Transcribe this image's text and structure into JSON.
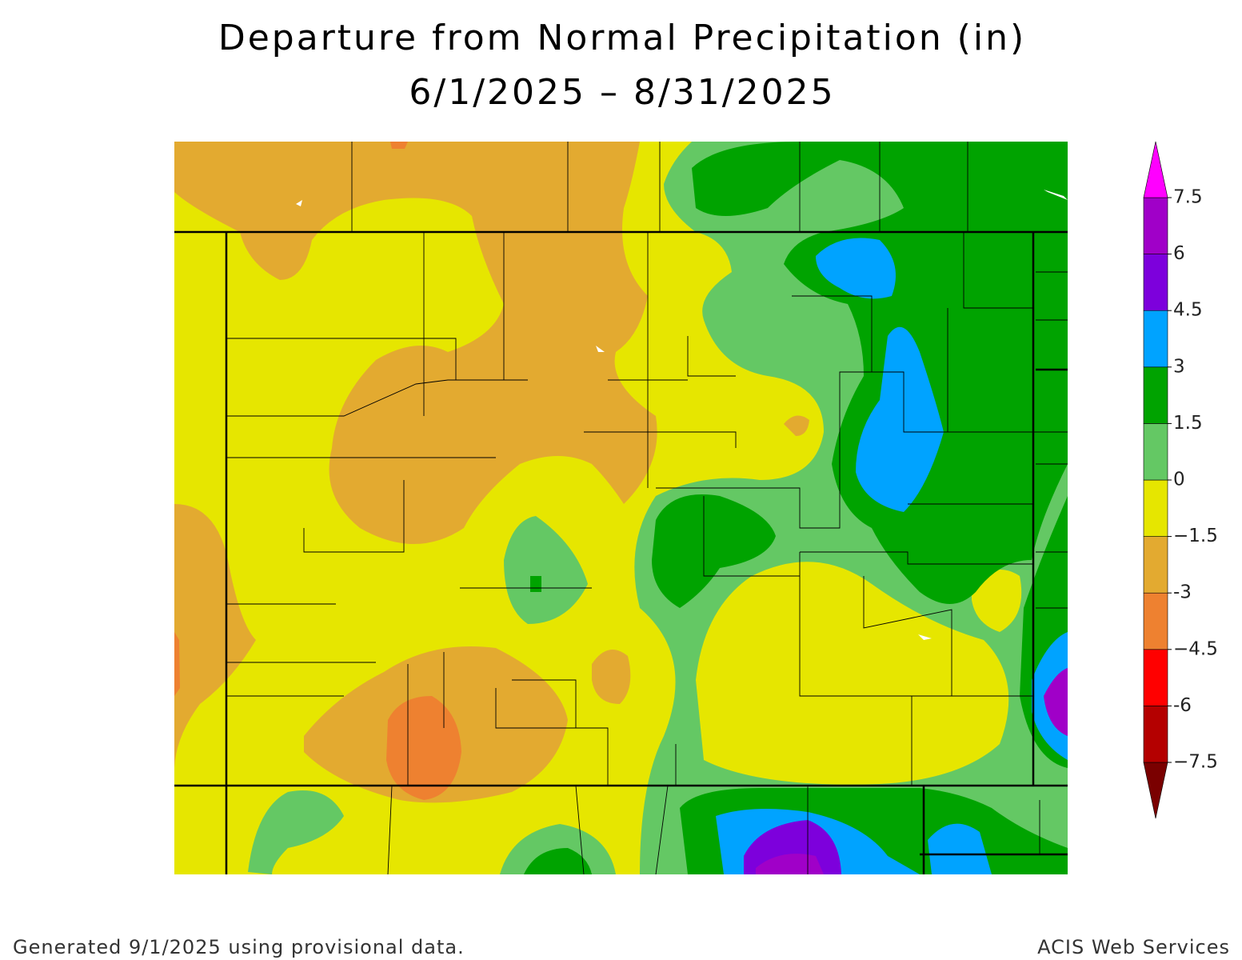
{
  "title": "Departure from Normal Precipitation (in)",
  "subtitle": "6/1/2025 – 8/31/2025",
  "legend": {
    "levels": [
      {
        "value": -7.5,
        "label": "−7.5"
      },
      -6,
      {
        "value": -4.5,
        "label": "−4.5"
      },
      -3,
      {
        "value": -1.5,
        "label": "−1.5"
      },
      0,
      1.5,
      3,
      4.5,
      6,
      7.5
    ],
    "colors": [
      "#7a0000",
      "#b40000",
      "#ff0000",
      "#ee8130",
      "#e3aa30",
      "#e6e600",
      "#64c864",
      "#00a300",
      "#00a3ff",
      "#7d00dc",
      "#a000c8",
      "#ff00ff"
    ]
  },
  "footer": {
    "left": "Generated 9/1/2025 using provisional data.",
    "right": "ACIS Web Services"
  }
}
